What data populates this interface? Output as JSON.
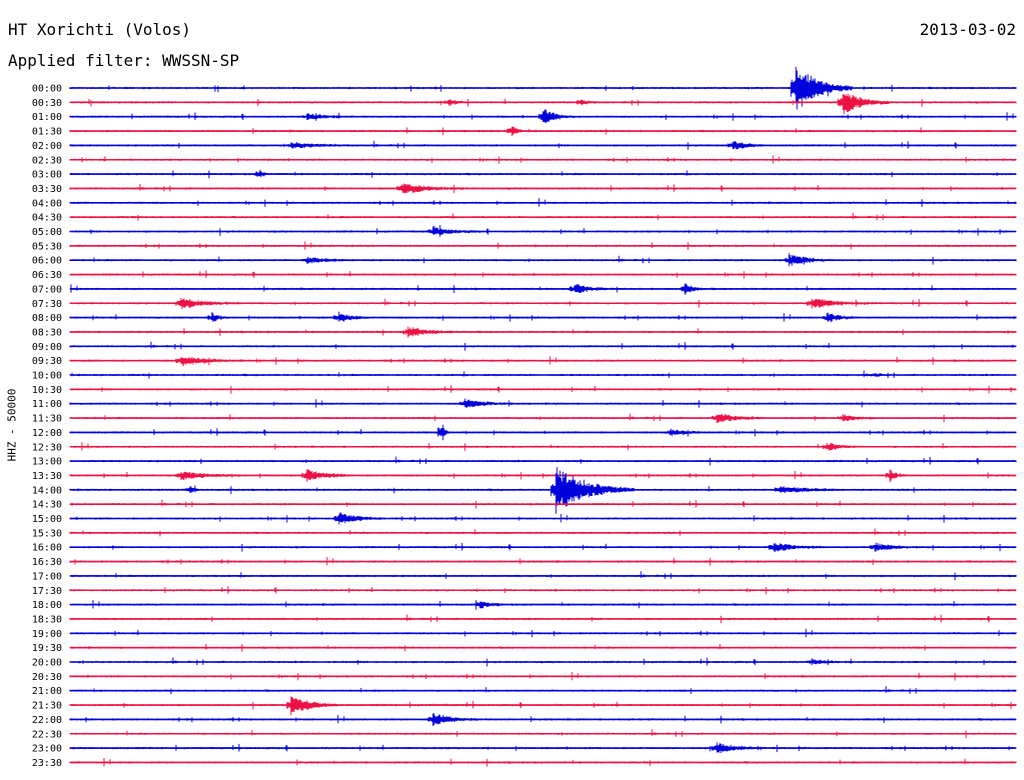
{
  "header": {
    "station": "HT Xorichti (Volos)",
    "date": "2013-03-02",
    "filter": "Applied filter: WWSSN-SP"
  },
  "scale_label": "HHZ - 50000",
  "colors": {
    "even_trace": "#0000dd",
    "odd_trace": "#ee1144",
    "text": "#000000"
  },
  "chart_data": {
    "type": "line",
    "title": "HT Xorichti (Volos)",
    "subtitle": "Applied filter: WWSSN-SP",
    "ylabel": "HHZ - 50000",
    "trace_minutes": 30,
    "grid": false,
    "rows": [
      "00:00",
      "00:30",
      "01:00",
      "01:30",
      "02:00",
      "02:30",
      "03:00",
      "03:30",
      "04:00",
      "04:30",
      "05:00",
      "05:30",
      "06:00",
      "06:30",
      "07:00",
      "07:30",
      "08:00",
      "08:30",
      "09:00",
      "09:30",
      "10:00",
      "10:30",
      "11:00",
      "11:30",
      "12:00",
      "12:30",
      "13:00",
      "13:30",
      "14:00",
      "14:30",
      "15:00",
      "15:30",
      "16:00",
      "16:30",
      "17:00",
      "17:30",
      "18:00",
      "18:30",
      "19:00",
      "19:30",
      "20:00",
      "20:30",
      "21:00",
      "21:30",
      "22:00",
      "22:30",
      "23:00",
      "23:30"
    ],
    "events": [
      {
        "row": 1,
        "minute": 24.5,
        "amplitude": 13,
        "duration": 1.5
      },
      {
        "row": 1,
        "minute": 12.0,
        "amplitude": 4,
        "duration": 0.5
      },
      {
        "row": 1,
        "minute": 16.2,
        "amplitude": 3,
        "duration": 0.5
      },
      {
        "row": 0,
        "minute": 23.0,
        "amplitude": 26,
        "duration": 1.8
      },
      {
        "row": 2,
        "minute": 15.0,
        "amplitude": 8,
        "duration": 1.0
      },
      {
        "row": 2,
        "minute": 7.5,
        "amplitude": 3,
        "duration": 1.5
      },
      {
        "row": 3,
        "minute": 14.0,
        "amplitude": 6,
        "duration": 0.4
      },
      {
        "row": 4,
        "minute": 21.0,
        "amplitude": 5,
        "duration": 1.0
      },
      {
        "row": 4,
        "minute": 7.0,
        "amplitude": 3,
        "duration": 2.0
      },
      {
        "row": 6,
        "minute": 6.0,
        "amplitude": 5,
        "duration": 0.3
      },
      {
        "row": 7,
        "minute": 10.5,
        "amplitude": 6,
        "duration": 2.0
      },
      {
        "row": 10,
        "minute": 11.5,
        "amplitude": 4,
        "duration": 1.5
      },
      {
        "row": 12,
        "minute": 22.8,
        "amplitude": 6,
        "duration": 1.5
      },
      {
        "row": 12,
        "minute": 7.5,
        "amplitude": 3,
        "duration": 1.5
      },
      {
        "row": 14,
        "minute": 16.0,
        "amplitude": 6,
        "duration": 1.0
      },
      {
        "row": 14,
        "minute": 19.5,
        "amplitude": 6,
        "duration": 0.6
      },
      {
        "row": 15,
        "minute": 3.5,
        "amplitude": 5,
        "duration": 2.0
      },
      {
        "row": 15,
        "minute": 23.5,
        "amplitude": 5,
        "duration": 2.0
      },
      {
        "row": 16,
        "minute": 8.5,
        "amplitude": 6,
        "duration": 1.0
      },
      {
        "row": 16,
        "minute": 4.5,
        "amplitude": 5,
        "duration": 0.5
      },
      {
        "row": 16,
        "minute": 24.0,
        "amplitude": 5,
        "duration": 1.0
      },
      {
        "row": 17,
        "minute": 10.7,
        "amplitude": 6,
        "duration": 1.5
      },
      {
        "row": 19,
        "minute": 3.5,
        "amplitude": 5,
        "duration": 2.0
      },
      {
        "row": 22,
        "minute": 12.5,
        "amplitude": 5,
        "duration": 1.5
      },
      {
        "row": 23,
        "minute": 20.5,
        "amplitude": 5,
        "duration": 1.5
      },
      {
        "row": 23,
        "minute": 24.5,
        "amplitude": 4,
        "duration": 1.0
      },
      {
        "row": 24,
        "minute": 11.8,
        "amplitude": 14,
        "duration": 0.2
      },
      {
        "row": 24,
        "minute": 19.0,
        "amplitude": 3,
        "duration": 1.5
      },
      {
        "row": 25,
        "minute": 24.0,
        "amplitude": 4,
        "duration": 1.0
      },
      {
        "row": 27,
        "minute": 3.5,
        "amplitude": 4,
        "duration": 2.0
      },
      {
        "row": 27,
        "minute": 7.5,
        "amplitude": 6,
        "duration": 1.5
      },
      {
        "row": 27,
        "minute": 26.0,
        "amplitude": 6,
        "duration": 0.5
      },
      {
        "row": 28,
        "minute": 15.4,
        "amplitude": 24,
        "duration": 2.5
      },
      {
        "row": 28,
        "minute": 3.8,
        "amplitude": 4,
        "duration": 0.3
      },
      {
        "row": 28,
        "minute": 22.5,
        "amplitude": 4,
        "duration": 2.0
      },
      {
        "row": 30,
        "minute": 8.5,
        "amplitude": 6,
        "duration": 1.5
      },
      {
        "row": 32,
        "minute": 22.3,
        "amplitude": 5,
        "duration": 1.5
      },
      {
        "row": 32,
        "minute": 25.5,
        "amplitude": 4,
        "duration": 1.5
      },
      {
        "row": 36,
        "minute": 13.0,
        "amplitude": 4,
        "duration": 0.8
      },
      {
        "row": 40,
        "minute": 23.5,
        "amplitude": 3,
        "duration": 1.0
      },
      {
        "row": 43,
        "minute": 7.0,
        "amplitude": 10,
        "duration": 1.5
      },
      {
        "row": 44,
        "minute": 11.5,
        "amplitude": 6,
        "duration": 1.5
      },
      {
        "row": 46,
        "minute": 20.5,
        "amplitude": 6,
        "duration": 1.5
      },
      {
        "row": 20,
        "minute": 25.5,
        "amplitude": 3,
        "duration": 0.3
      }
    ]
  }
}
